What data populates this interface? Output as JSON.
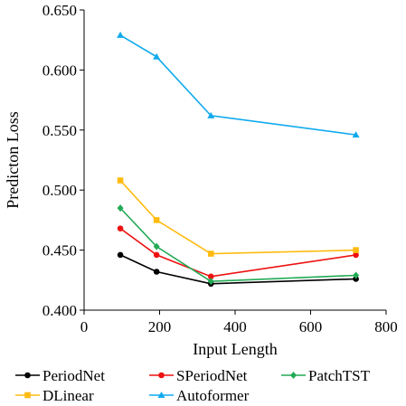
{
  "chart_data": {
    "type": "line",
    "title": "",
    "xlabel": "Input Length",
    "ylabel": "Predicton Loss",
    "xlim": [
      0,
      800
    ],
    "ylim": [
      0.4,
      0.65
    ],
    "xticks": [
      0,
      200,
      400,
      600,
      800
    ],
    "yticks": [
      0.4,
      0.45,
      0.5,
      0.55,
      0.6,
      0.65
    ],
    "xtick_labels": [
      "0",
      "200",
      "400",
      "600",
      "800"
    ],
    "ytick_labels": [
      "0.400",
      "0.450",
      "0.500",
      "0.550",
      "0.600",
      "0.650"
    ],
    "grid": false,
    "legend_position": "bottom",
    "x": [
      96,
      192,
      336,
      720
    ],
    "series": [
      {
        "name": "PeriodNet",
        "color": "#000000",
        "marker": "circle",
        "values": [
          0.446,
          0.432,
          0.422,
          0.426
        ]
      },
      {
        "name": "SPeriodNet",
        "color": "#ee1111",
        "marker": "circle",
        "values": [
          0.468,
          0.446,
          0.428,
          0.446
        ]
      },
      {
        "name": "PatchTST",
        "color": "#22aa55",
        "marker": "diamond",
        "values": [
          0.485,
          0.453,
          0.424,
          0.429
        ]
      },
      {
        "name": "DLinear",
        "color": "#ffbb11",
        "marker": "square",
        "values": [
          0.508,
          0.475,
          0.447,
          0.45
        ]
      },
      {
        "name": "Autoformer",
        "color": "#11aaee",
        "marker": "triangle",
        "values": [
          0.629,
          0.611,
          0.562,
          0.546
        ]
      }
    ]
  }
}
